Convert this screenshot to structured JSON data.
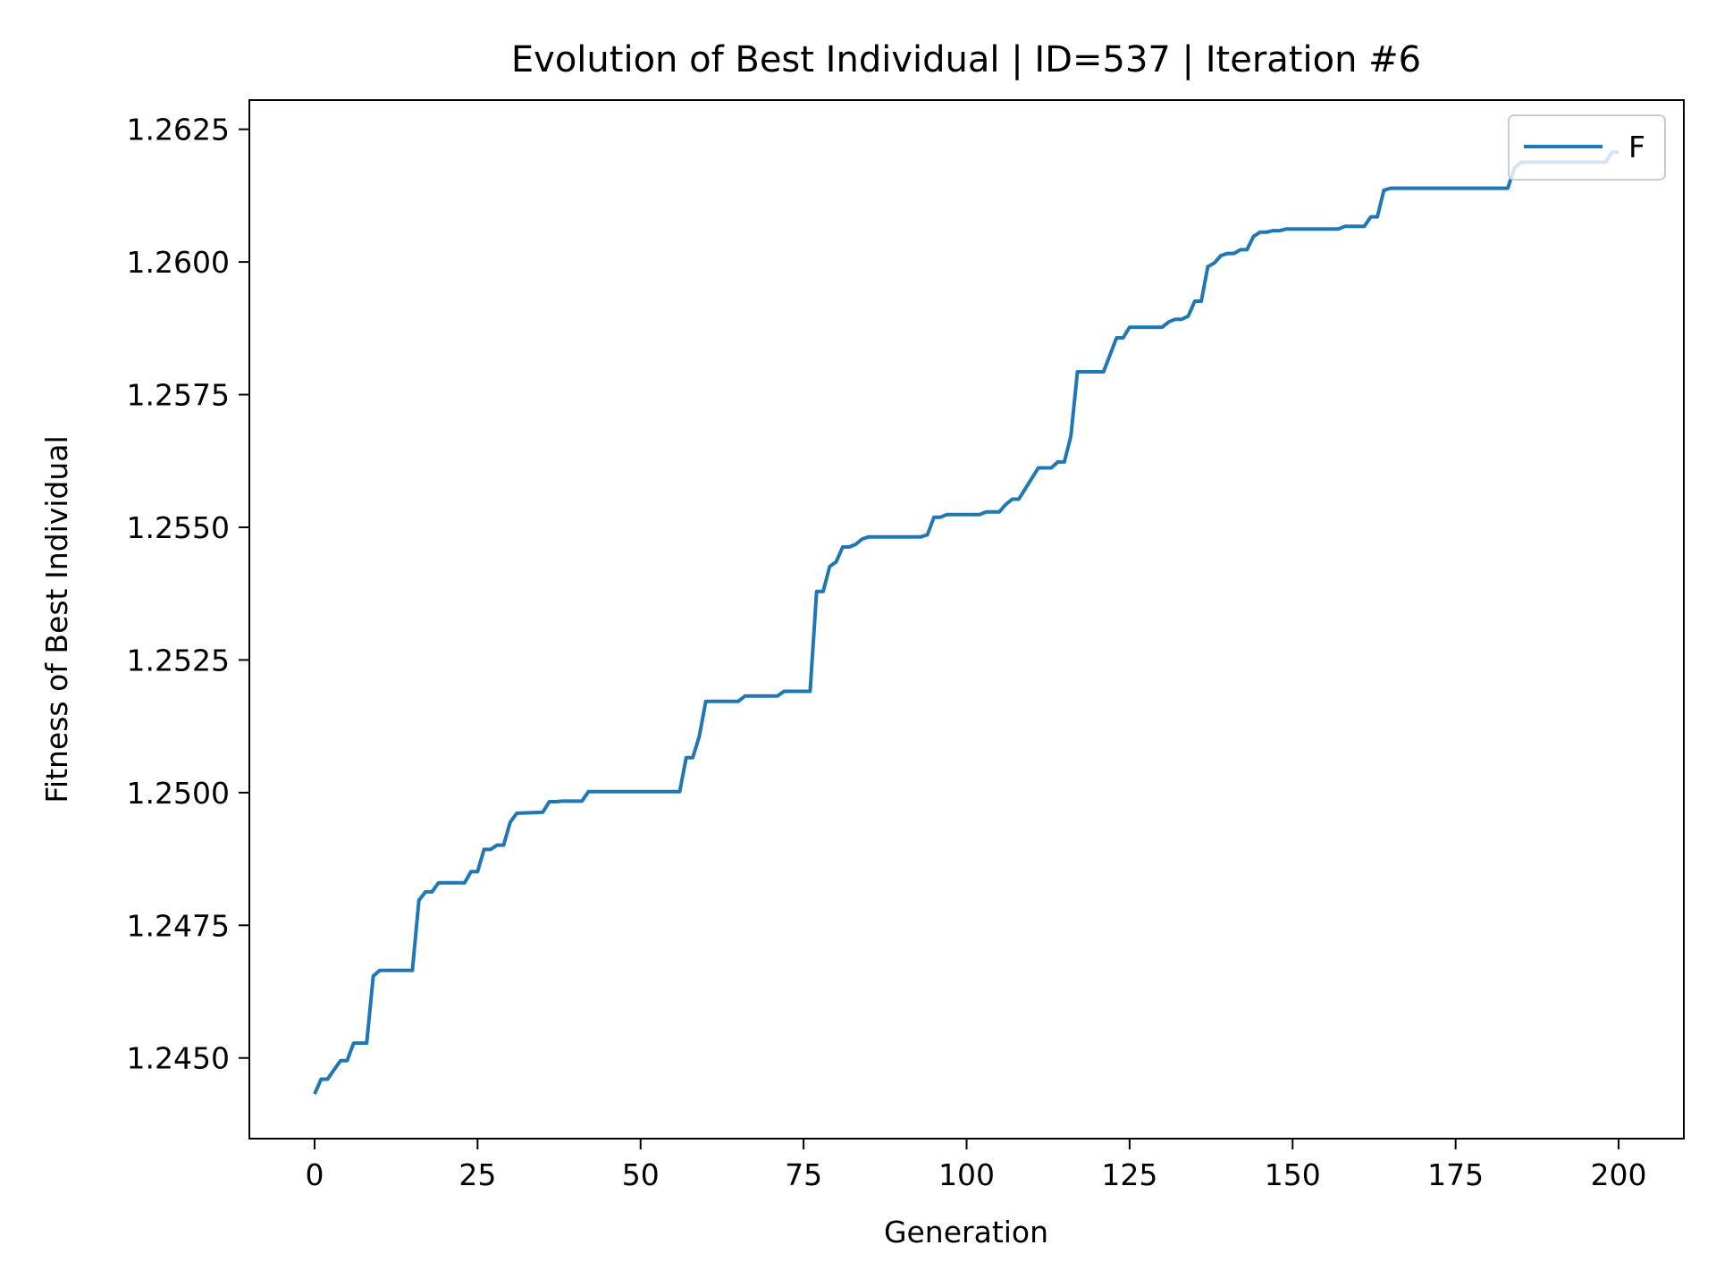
{
  "chart_data": {
    "type": "line",
    "title": "Evolution of Best Individual | ID=537 | Iteration #6",
    "xlabel": "Generation",
    "ylabel": "Fitness of Best Individual",
    "xlim": [
      -10,
      210
    ],
    "ylim": [
      1.24348,
      1.26305
    ],
    "xticks": [
      0,
      25,
      50,
      75,
      100,
      125,
      150,
      175,
      200
    ],
    "yticks": [
      1.245,
      1.2475,
      1.25,
      1.2525,
      1.255,
      1.2575,
      1.26,
      1.2625
    ],
    "ytick_labels": [
      "1.2450",
      "1.2475",
      "1.2500",
      "1.2525",
      "1.2550",
      "1.2575",
      "1.2600",
      "1.2625"
    ],
    "grid": false,
    "legend": {
      "position": "upper-right",
      "entries": [
        "F"
      ]
    },
    "series": [
      {
        "name": "F",
        "color": "#1f77b4",
        "x": [
          0,
          1,
          2,
          3,
          4,
          5,
          6,
          7,
          8,
          9,
          10,
          15,
          16,
          17,
          18,
          19,
          23,
          24,
          25,
          26,
          27,
          28,
          29,
          30,
          31,
          35,
          36,
          37,
          38,
          41,
          42,
          56,
          57,
          58,
          59,
          60,
          65,
          66,
          71,
          72,
          76,
          77,
          78,
          79,
          80,
          81,
          82,
          83,
          84,
          85,
          93,
          94,
          95,
          96,
          97,
          102,
          103,
          104,
          105,
          106,
          107,
          108,
          111,
          112,
          113,
          114,
          115,
          116,
          117,
          120,
          121,
          123,
          124,
          125,
          130,
          131,
          132,
          133,
          134,
          135,
          136,
          137,
          138,
          139,
          140,
          141,
          142,
          143,
          144,
          145,
          146,
          147,
          148,
          149,
          150,
          157,
          158,
          160,
          161,
          162,
          163,
          164,
          165,
          166,
          183,
          184,
          185,
          198,
          199,
          200
        ],
        "values": [
          1.24432,
          1.2446,
          1.2446,
          1.24478,
          1.24495,
          1.24495,
          1.24528,
          1.24528,
          1.24528,
          1.24654,
          1.24665,
          1.24665,
          1.24797,
          1.24813,
          1.24813,
          1.2483,
          1.2483,
          1.24851,
          1.24851,
          1.24893,
          1.24893,
          1.24901,
          1.24901,
          1.24944,
          1.24961,
          1.24963,
          1.24983,
          1.24983,
          1.24984,
          1.24984,
          1.25002,
          1.25002,
          1.25066,
          1.25066,
          1.25106,
          1.25172,
          1.25172,
          1.25182,
          1.25182,
          1.25191,
          1.25191,
          1.25379,
          1.25379,
          1.25426,
          1.25435,
          1.25463,
          1.25463,
          1.25468,
          1.25478,
          1.25482,
          1.25482,
          1.25486,
          1.25519,
          1.25519,
          1.25524,
          1.25524,
          1.25529,
          1.25529,
          1.25529,
          1.25543,
          1.25553,
          1.25553,
          1.25612,
          1.25612,
          1.25612,
          1.25623,
          1.25623,
          1.25672,
          1.25793,
          1.25793,
          1.25793,
          1.25857,
          1.25857,
          1.25877,
          1.25877,
          1.25887,
          1.25892,
          1.25892,
          1.25898,
          1.25926,
          1.25926,
          1.25991,
          1.25998,
          1.26012,
          1.26016,
          1.26016,
          1.26023,
          1.26023,
          1.26048,
          1.26056,
          1.26056,
          1.26059,
          1.26059,
          1.26062,
          1.26062,
          1.26062,
          1.26067,
          1.26067,
          1.26067,
          1.26085,
          1.26085,
          1.26135,
          1.26139,
          1.26139,
          1.26139,
          1.26176,
          1.26188,
          1.26188,
          1.26207,
          1.26207
        ]
      }
    ]
  }
}
